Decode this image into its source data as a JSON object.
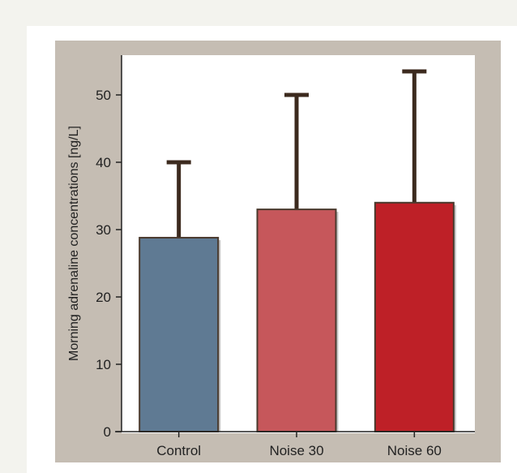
{
  "chart_data": {
    "type": "bar",
    "title": "",
    "xlabel": "",
    "ylabel": "Morning adrenaline concentrations [ng/L]",
    "categories": [
      "Control",
      "Noise 30",
      "Noise 60"
    ],
    "values": [
      28.8,
      33,
      34
    ],
    "error_upper": [
      40,
      50,
      53.5
    ],
    "ylim": [
      0,
      55
    ],
    "yticks": [
      0,
      10,
      20,
      30,
      40,
      50
    ],
    "grid": false,
    "legend": "none",
    "bar_colors": [
      "#5f7a93",
      "#c6575b",
      "#be2027"
    ],
    "error_bar_color": "#3c2a1e",
    "axis_color": "#222222",
    "frame_color": "#c5bdb3",
    "plot_background": "#ffffff"
  }
}
